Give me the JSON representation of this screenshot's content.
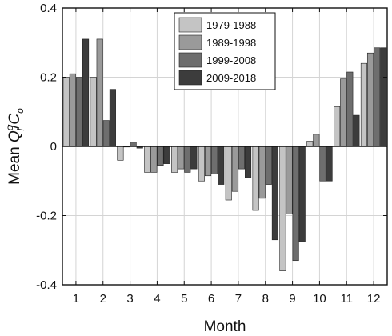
{
  "chart_data": {
    "type": "bar",
    "categories": [
      "1",
      "2",
      "3",
      "4",
      "5",
      "6",
      "7",
      "8",
      "9",
      "10",
      "11",
      "12"
    ],
    "series": [
      {
        "name": "1979-1988",
        "color": "#c4c4c4",
        "values": [
          0.2,
          0.2,
          -0.04,
          -0.075,
          -0.075,
          -0.1,
          -0.155,
          -0.185,
          -0.36,
          0.015,
          0.115,
          0.24
        ]
      },
      {
        "name": "1989-1998",
        "color": "#9a9a9a",
        "values": [
          0.21,
          0.31,
          0.0,
          -0.075,
          -0.065,
          -0.085,
          -0.13,
          -0.15,
          -0.195,
          0.035,
          0.195,
          0.27
        ]
      },
      {
        "name": "1999-2008",
        "color": "#6e6e6e",
        "values": [
          0.2,
          0.075,
          0.012,
          -0.055,
          -0.075,
          -0.08,
          -0.065,
          -0.11,
          -0.33,
          -0.1,
          0.215,
          0.285
        ]
      },
      {
        "name": "2009-2018",
        "color": "#3c3c3c",
        "values": [
          0.31,
          0.165,
          -0.005,
          -0.05,
          -0.065,
          -0.11,
          -0.09,
          -0.27,
          -0.275,
          -0.1,
          0.09,
          0.285
        ]
      }
    ],
    "xlabel": "Month",
    "ylabel": "Mean Q_l^o/C_o",
    "ylabel_parts": {
      "prefix": "Mean ",
      "q": "Q",
      "q_sup": "o",
      "q_sub": "l",
      "slash": "/",
      "c": "C",
      "c_sub": "o"
    },
    "ylim": [
      -0.4,
      0.4
    ],
    "yticks": [
      -0.4,
      -0.2,
      0,
      0.2,
      0.4
    ],
    "ytick_labels": [
      "-0.4",
      "-0.2",
      "0",
      "0.2",
      "0.4"
    ],
    "grid": true,
    "legend_position": "top-center"
  }
}
